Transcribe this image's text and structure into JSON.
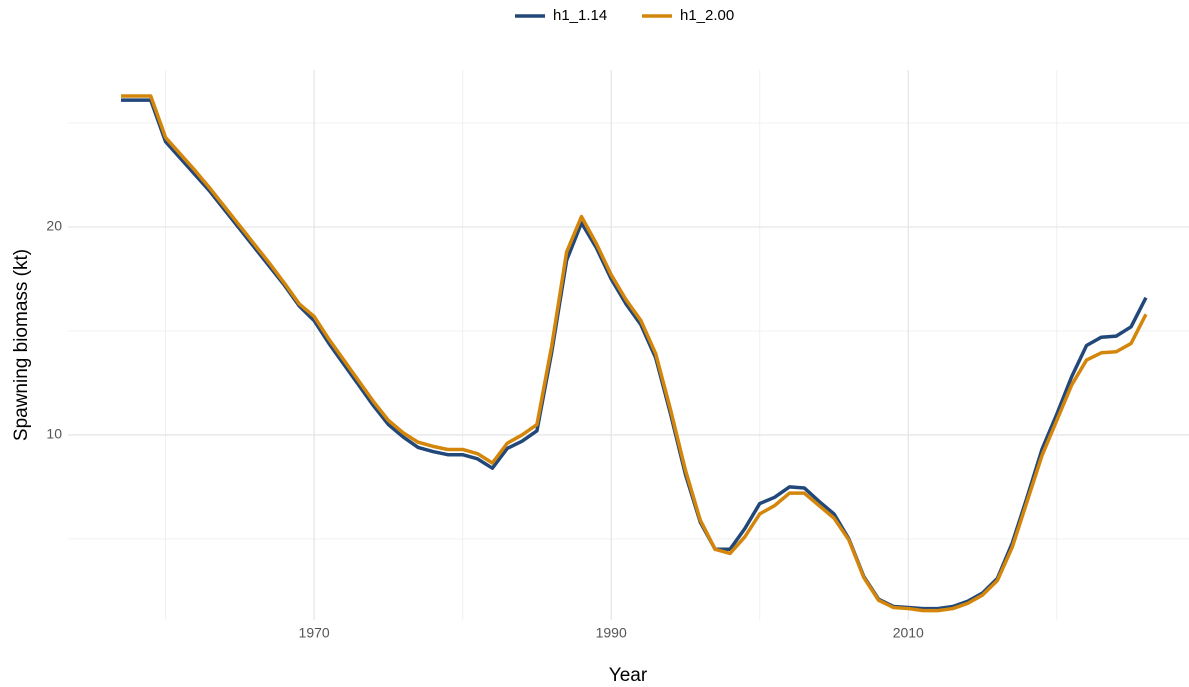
{
  "chart_data": {
    "type": "line",
    "x_label": "Year",
    "y_label": "Spawning biomass (kt)",
    "x": [
      1957,
      1958,
      1959,
      1960,
      1961,
      1962,
      1963,
      1964,
      1965,
      1966,
      1967,
      1968,
      1969,
      1970,
      1971,
      1972,
      1973,
      1974,
      1975,
      1976,
      1977,
      1978,
      1979,
      1980,
      1981,
      1982,
      1983,
      1984,
      1985,
      1986,
      1987,
      1988,
      1989,
      1990,
      1991,
      1992,
      1993,
      1994,
      1995,
      1996,
      1997,
      1998,
      1999,
      2000,
      2001,
      2002,
      2003,
      2004,
      2005,
      2006,
      2007,
      2008,
      2009,
      2010,
      2011,
      2012,
      2013,
      2014,
      2015,
      2016,
      2017,
      2018,
      2019,
      2020,
      2021,
      2022,
      2023,
      2024,
      2025,
      2026
    ],
    "series": [
      {
        "name": "h1_1.14",
        "color": "#22487a",
        "values": [
          26.1,
          26.1,
          26.1,
          24.1,
          23.3,
          22.5,
          21.7,
          20.8,
          19.9,
          19.0,
          18.1,
          17.2,
          16.2,
          15.5,
          14.4,
          13.4,
          12.4,
          11.4,
          10.5,
          9.9,
          9.4,
          9.2,
          9.05,
          9.05,
          8.85,
          8.4,
          9.35,
          9.7,
          10.2,
          14.0,
          18.4,
          20.2,
          19.0,
          17.5,
          16.3,
          15.3,
          13.7,
          11.0,
          8.1,
          5.8,
          4.5,
          4.5,
          5.5,
          6.7,
          7.0,
          7.5,
          7.45,
          6.8,
          6.2,
          5.0,
          3.2,
          2.1,
          1.75,
          1.7,
          1.65,
          1.65,
          1.75,
          2.0,
          2.4,
          3.1,
          4.8,
          7.0,
          9.3,
          11.0,
          12.8,
          14.3,
          14.7,
          14.75,
          15.2,
          16.6
        ]
      },
      {
        "name": "h1_2.00",
        "color": "#d4860b",
        "values": [
          26.3,
          26.3,
          26.3,
          24.3,
          23.5,
          22.7,
          21.85,
          20.95,
          20.05,
          19.15,
          18.25,
          17.3,
          16.3,
          15.7,
          14.6,
          13.6,
          12.6,
          11.6,
          10.7,
          10.1,
          9.65,
          9.45,
          9.3,
          9.3,
          9.1,
          8.65,
          9.6,
          10.0,
          10.5,
          14.3,
          18.8,
          20.5,
          19.2,
          17.7,
          16.5,
          15.5,
          13.9,
          11.2,
          8.3,
          5.9,
          4.5,
          4.3,
          5.1,
          6.2,
          6.6,
          7.2,
          7.2,
          6.6,
          6.0,
          4.95,
          3.15,
          2.05,
          1.7,
          1.65,
          1.55,
          1.55,
          1.65,
          1.9,
          2.3,
          3.0,
          4.6,
          6.8,
          9.0,
          10.7,
          12.4,
          13.6,
          13.95,
          14.0,
          14.4,
          15.8
        ]
      }
    ],
    "xlim": [
      1953.43,
      2028.9
    ],
    "xticks": [
      1970,
      1990,
      2010
    ],
    "xminor": [
      1960,
      1980,
      2000,
      2020
    ],
    "ylim": [
      1.1,
      27.55
    ],
    "yticks": [
      10,
      20
    ],
    "yminor": [
      5,
      15,
      25
    ],
    "grid": true,
    "legend": "top"
  }
}
